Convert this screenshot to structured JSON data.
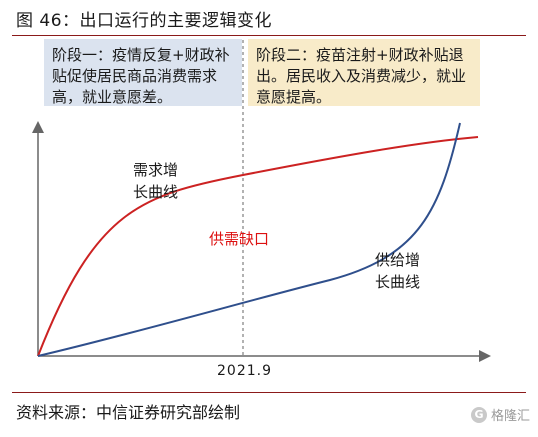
{
  "title": "图 46：出口运行的主要逻辑变化",
  "phase1": "阶段一：疫情反复+财政补贴促使居民商品消费需求高，就业意愿差。",
  "phase2": "阶段二：疫苗注射+财政补贴退出。居民收入及消费减少，就业意愿提高。",
  "demand_label_line1": "需求增",
  "demand_label_line2": "长曲线",
  "supply_label_line1": "供给增",
  "supply_label_line2": "长曲线",
  "gap_label": "供需缺口",
  "x_tick": "2021.9",
  "source": "资料来源：中信证券研究部绘制",
  "watermark": "格隆汇",
  "colors": {
    "demand": "#cc2222",
    "supply": "#2f4f8c",
    "gap_text": "#dd1111",
    "phase1_bg": "#dbe3ef",
    "phase2_bg": "#f8ebc9",
    "rule": "#8b1a1a"
  }
}
